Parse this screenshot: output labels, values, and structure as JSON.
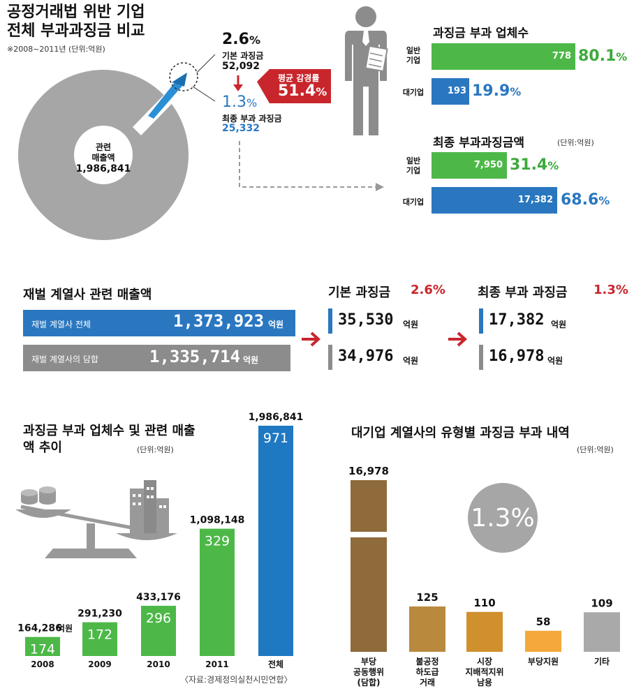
{
  "section1": {
    "title_line1": "공정거래법 위반 기업",
    "title_line2": "전체 부과과징금 비교",
    "subtitle": "※2008~2011년 (단위:억원)",
    "donut_label": "관련",
    "donut_label2": "매출액",
    "donut_value": "1,986,841",
    "basic_pct": "2.6",
    "basic_label": "기본 과징금",
    "basic_value": "52,092",
    "final_pct": "1.3",
    "final_label": "최종 부과 과징금",
    "final_value": "25,332",
    "avg_label": "평균 감경률",
    "avg_value": "51.4",
    "pct_sign": "%"
  },
  "section2": {
    "title": "과징금 부과 업체수",
    "rows": [
      {
        "label1": "일반",
        "label2": "기업",
        "value": "778",
        "pct": "80.1",
        "color": "#4db848"
      },
      {
        "label1": "대기업",
        "label2": "",
        "value": "193",
        "pct": "19.9",
        "color": "#2a77c0"
      }
    ],
    "title2": "최종 부과과징금액",
    "unit2": "(단위:억원)",
    "rows2": [
      {
        "label1": "일반",
        "label2": "기업",
        "value": "7,950",
        "pct": "31.4",
        "color": "#4db848"
      },
      {
        "label1": "대기업",
        "label2": "",
        "value": "17,382",
        "pct": "68.6",
        "color": "#2a77c0"
      }
    ]
  },
  "section3": {
    "title": "재벌 계열사 관련 매출액",
    "row1_label": "재벌 계열사 전체",
    "row1_value": "1,373,923",
    "row2_label": "재벌 계열사의 담합",
    "row2_value": "1,335,714",
    "unit": "억원",
    "basic_title": "기본 과징금",
    "basic_pct": "2.6%",
    "basic_v1": "35,530",
    "basic_v2": "34,976",
    "final_title": "최종 부과 과징금",
    "final_pct": "1.3%",
    "final_v1": "17,382",
    "final_v2": "16,978"
  },
  "chart_data": [
    {
      "type": "bar",
      "title": "과징금 부과 업체수 및 관련 매출액 추이",
      "unit": "(단위:억원)",
      "categories": [
        "2008",
        "2009",
        "2010",
        "2011",
        "전체"
      ],
      "values": [
        164286,
        291230,
        433176,
        1098148,
        1986841
      ],
      "value_labels": [
        "164,286",
        "291,230",
        "433,176",
        "1,098,148",
        "1,986,841"
      ],
      "counts": [
        "174",
        "172",
        "296",
        "329",
        "971"
      ],
      "first_unit": "억원",
      "colors": [
        "#4db848",
        "#4db848",
        "#4db848",
        "#4db848",
        "#1e78c2"
      ],
      "source": "〈자료:경제정의실천시민연합〉"
    },
    {
      "type": "bar",
      "title": "대기업 계열사의 유형별 과징금 부과 내역",
      "unit": "(단위:억원)",
      "categories": [
        [
          "부당",
          "공동행위",
          "(담합)"
        ],
        [
          "불공정",
          "하도급",
          "거래"
        ],
        [
          "시장",
          "지배적지위",
          "남용"
        ],
        [
          "부당지원"
        ],
        [
          "기타"
        ]
      ],
      "values": [
        16978,
        125,
        110,
        58,
        109
      ],
      "value_labels": [
        "16,978",
        "125",
        "110",
        "58",
        "109"
      ],
      "colors": [
        "#8f6a3a",
        "#b98a3e",
        "#d0902e",
        "#f4a93a",
        "#a9a9a9"
      ],
      "badge": "1.3%"
    }
  ]
}
